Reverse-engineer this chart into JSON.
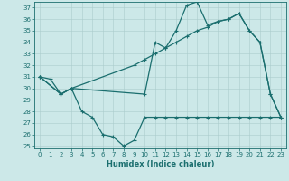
{
  "bg_color": "#cce8e8",
  "line_color": "#1a6e6e",
  "grid_color": "#aacccc",
  "xlabel": "Humidex (Indice chaleur)",
  "xlim": [
    -0.5,
    23.5
  ],
  "ylim": [
    24.8,
    37.5
  ],
  "xticks": [
    0,
    1,
    2,
    3,
    4,
    5,
    6,
    7,
    8,
    9,
    10,
    11,
    12,
    13,
    14,
    15,
    16,
    17,
    18,
    19,
    20,
    21,
    22,
    23
  ],
  "yticks": [
    25,
    26,
    27,
    28,
    29,
    30,
    31,
    32,
    33,
    34,
    35,
    36,
    37
  ],
  "line1_x": [
    0,
    1,
    2,
    3,
    4,
    5,
    6,
    7,
    8,
    9,
    10,
    11,
    12,
    13,
    14,
    15,
    16,
    17,
    18,
    19,
    20,
    21,
    22,
    23
  ],
  "line1_y": [
    31,
    30.8,
    29.5,
    30.0,
    28.0,
    27.5,
    26.0,
    25.8,
    25.0,
    25.5,
    27.5,
    27.5,
    27.5,
    27.5,
    27.5,
    27.5,
    27.5,
    27.5,
    27.5,
    27.5,
    27.5,
    27.5,
    27.5,
    27.5
  ],
  "line2_x": [
    0,
    2,
    3,
    10,
    11,
    12,
    13,
    14,
    15,
    16,
    17,
    18,
    19,
    20,
    21,
    22,
    23
  ],
  "line2_y": [
    31,
    29.5,
    30.0,
    29.5,
    34.0,
    33.5,
    35.0,
    37.2,
    37.5,
    35.5,
    35.8,
    36.0,
    36.5,
    35.0,
    34.0,
    29.5,
    27.5
  ],
  "line3_x": [
    0,
    2,
    3,
    9,
    10,
    11,
    12,
    13,
    14,
    15,
    16,
    17,
    18,
    19,
    20,
    21,
    22,
    23
  ],
  "line3_y": [
    31,
    29.5,
    30.0,
    32.0,
    32.5,
    33.0,
    33.5,
    34.0,
    34.5,
    35.0,
    35.3,
    35.8,
    36.0,
    36.5,
    35.0,
    34.0,
    29.5,
    27.5
  ],
  "tick_fontsize": 5.0,
  "xlabel_fontsize": 6.0,
  "linewidth": 0.9,
  "markersize": 3.0
}
